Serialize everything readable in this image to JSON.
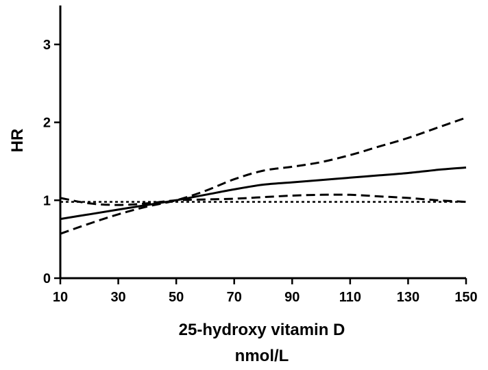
{
  "chart_data": {
    "type": "line",
    "title": "",
    "xlabel": "25-hydroxy vitamin D",
    "xlabel_unit": "nmol/L",
    "ylabel": "HR",
    "xlim": [
      10,
      150
    ],
    "ylim": [
      0,
      3.5
    ],
    "xticks": [
      "10",
      "30",
      "50",
      "70",
      "90",
      "110",
      "130",
      "150"
    ],
    "yticks": [
      "0",
      "1",
      "2",
      "3"
    ],
    "grid": false,
    "legend": "none",
    "series": [
      {
        "style": "solid",
        "x": [
          10,
          20,
          30,
          40,
          50,
          60,
          70,
          80,
          90,
          100,
          110,
          120,
          130,
          140,
          150
        ],
        "y": [
          0.76,
          0.82,
          0.88,
          0.94,
          1.0,
          1.07,
          1.14,
          1.2,
          1.23,
          1.26,
          1.29,
          1.32,
          1.35,
          1.39,
          1.42
        ]
      },
      {
        "style": "dashed",
        "x": [
          10,
          20,
          30,
          40,
          50,
          60,
          70,
          80,
          90,
          100,
          110,
          120,
          130,
          140,
          150
        ],
        "y": [
          0.57,
          0.7,
          0.82,
          0.92,
          1.0,
          1.12,
          1.27,
          1.38,
          1.43,
          1.49,
          1.58,
          1.69,
          1.8,
          1.93,
          2.06
        ]
      },
      {
        "style": "dashed",
        "x": [
          10,
          20,
          30,
          40,
          50,
          60,
          70,
          80,
          90,
          100,
          110,
          120,
          130,
          140,
          150
        ],
        "y": [
          1.03,
          0.96,
          0.94,
          0.96,
          1.0,
          1.01,
          1.02,
          1.04,
          1.06,
          1.07,
          1.07,
          1.05,
          1.03,
          1.0,
          0.98
        ]
      },
      {
        "style": "dotted",
        "x": [
          10,
          150
        ],
        "y": [
          0.98,
          0.98
        ]
      }
    ]
  }
}
